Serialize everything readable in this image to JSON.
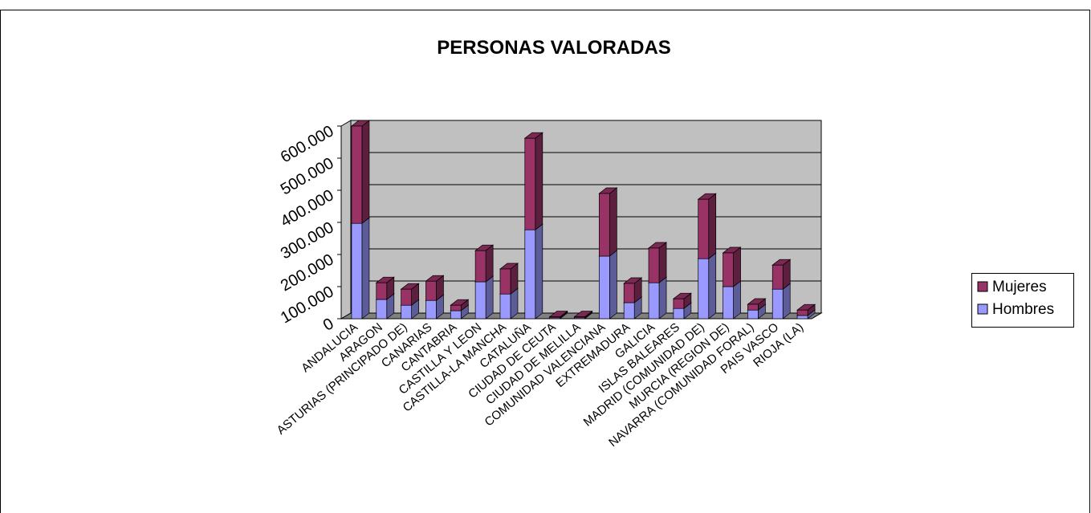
{
  "chart_data": {
    "type": "bar3d_stacked",
    "title": "PERSONAS VALORADAS",
    "categories": [
      "ANDALUCIA",
      "ARAGON",
      "ASTURIAS (PRINCIPADO DE)",
      "CANARIAS",
      "CANTABRIA",
      "CASTILLA Y LEON",
      "CASTILLA-LA MANCHA",
      "CATALUÑA",
      "CIUDAD DE CEUTA",
      "CIUDAD DE MELILLA",
      "COMUNIDAD VALENCIANA",
      "EXTREMADURA",
      "GALICIA",
      "ISLAS BALEARES",
      "MADRID (COMUNIDAD DE)",
      "MURCIA (REGION DE)",
      "NAVARRA (COMUNIDAD FORAL)",
      "PAIS VASCO",
      "RIOJA (LA)"
    ],
    "series": [
      {
        "name": "Hombres",
        "color": "#9999ff",
        "values": [
          297000,
          60000,
          42000,
          57000,
          25000,
          115000,
          77000,
          277000,
          3000,
          3000,
          195000,
          50000,
          112000,
          32000,
          187000,
          100000,
          27000,
          92000,
          10000
        ]
      },
      {
        "name": "Mujeres",
        "color": "#993366",
        "values": [
          303000,
          52000,
          50000,
          60000,
          17000,
          97000,
          78000,
          285000,
          3000,
          3000,
          195000,
          60000,
          108000,
          30000,
          185000,
          105000,
          18000,
          75000,
          17000
        ]
      }
    ],
    "ylim": [
      0,
      600000
    ],
    "yticks": [
      0,
      {
        "value": 100000,
        "label": "100.000"
      },
      {
        "value": 200000,
        "label": "200.000"
      },
      {
        "value": 300000,
        "label": "300.000"
      },
      {
        "value": 400000,
        "label": "400.000"
      },
      {
        "value": 500000,
        "label": "500.000"
      },
      {
        "value": 600000,
        "label": "600.000"
      }
    ],
    "grid": true,
    "legend": "right"
  }
}
